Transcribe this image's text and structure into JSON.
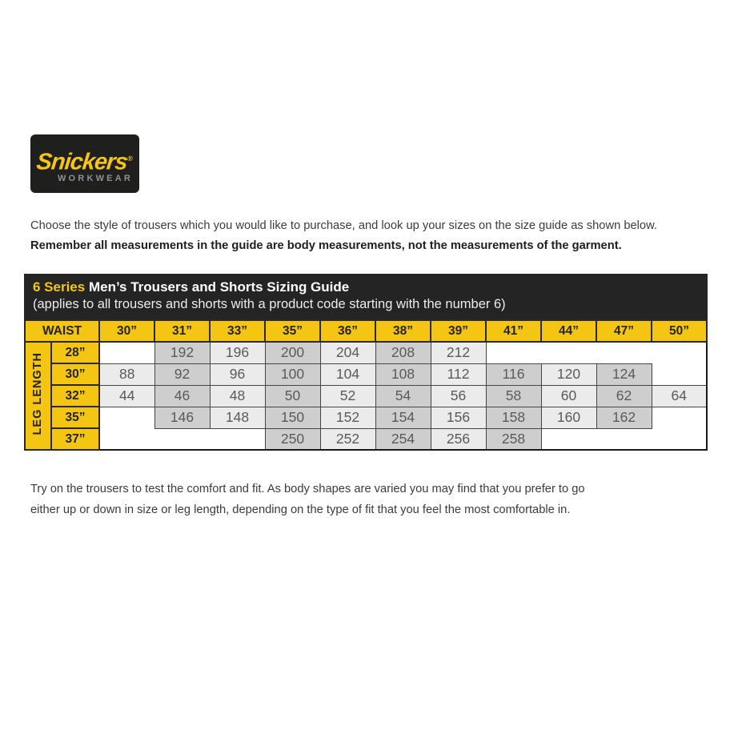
{
  "logo": {
    "brand": "Snickers",
    "registered": "®",
    "subbrand": "WORKWEAR"
  },
  "intro": {
    "line1": "Choose the style of trousers which you would like to purchase, and look up your sizes on the size guide as shown below.",
    "line2": "Remember all measurements in the guide are body measurements, not the measurements of the garment."
  },
  "guide": {
    "series_label": "6 Series",
    "title": "Men’s Trousers and Shorts Sizing Guide",
    "subtitle": "(applies to all trousers and shorts with a product code starting with the number 6)",
    "waist_label": "WAIST",
    "leg_label": "LEG LENGTH",
    "waist_sizes": [
      "30”",
      "31”",
      "33”",
      "35”",
      "36”",
      "38”",
      "39”",
      "41”",
      "44”",
      "47”",
      "50”"
    ],
    "rows": [
      {
        "leg": "28”",
        "values": [
          "",
          "192",
          "196",
          "200",
          "204",
          "208",
          "212",
          "",
          "",
          "",
          ""
        ]
      },
      {
        "leg": "30”",
        "values": [
          "88",
          "92",
          "96",
          "100",
          "104",
          "108",
          "112",
          "116",
          "120",
          "124",
          ""
        ]
      },
      {
        "leg": "32”",
        "values": [
          "44",
          "46",
          "48",
          "50",
          "52",
          "54",
          "56",
          "58",
          "60",
          "62",
          "64"
        ]
      },
      {
        "leg": "35”",
        "values": [
          "",
          "146",
          "148",
          "150",
          "152",
          "154",
          "156",
          "158",
          "160",
          "162",
          ""
        ]
      },
      {
        "leg": "37”",
        "values": [
          "",
          "",
          "",
          "250",
          "252",
          "254",
          "256",
          "258",
          "",
          "",
          ""
        ]
      }
    ]
  },
  "footer": {
    "line1": "Try on the trousers to test the comfort and fit. As body shapes are varied you may find that you prefer to go",
    "line2": "either up or down in size or leg length, depending on the type of fit that you feel the most comfortable in."
  },
  "colors": {
    "brand_yellow": "#f4c613",
    "bar_black": "#242424",
    "logo_black": "#1f1f1d",
    "stripe_light": "#ebebeb",
    "stripe_dark": "#cecece",
    "number_text": "#5a5a5a"
  }
}
